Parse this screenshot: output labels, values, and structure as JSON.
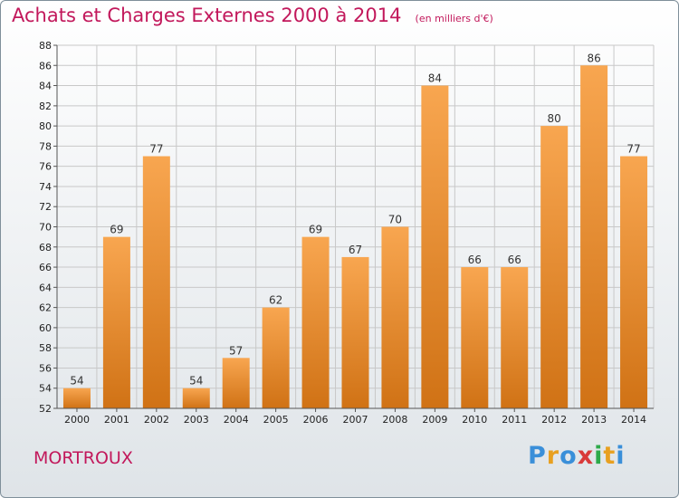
{
  "header": {
    "title": "Achats et Charges Externes 2000 à 2014",
    "subtitle": "(en milliers d'€)"
  },
  "footer": {
    "municipality": "MORTROUX",
    "logo_text": "Proxiti",
    "logo_colors": [
      "#3a8fd9",
      "#e8a020",
      "#3a8fd9",
      "#d93a3a",
      "#2eaa4a",
      "#e8a020",
      "#3a8fd9"
    ]
  },
  "colors": {
    "bar_top": "#f8a650",
    "bar_bottom": "#d07215",
    "grid": "#c8c8c8",
    "axis": "#555555",
    "title": "#c2185b"
  },
  "chart_data": {
    "type": "bar",
    "title": "Achats et Charges Externes 2000 à 2014",
    "subtitle": "(en milliers d'€)",
    "categories": [
      "2000",
      "2001",
      "2002",
      "2003",
      "2004",
      "2005",
      "2006",
      "2007",
      "2008",
      "2009",
      "2010",
      "2011",
      "2012",
      "2013",
      "2014"
    ],
    "values": [
      54,
      69,
      77,
      54,
      57,
      62,
      69,
      67,
      70,
      84,
      66,
      66,
      80,
      86,
      77
    ],
    "ylim": [
      52,
      88
    ],
    "ytick_step": 2,
    "grid": true,
    "data_labels": true
  }
}
